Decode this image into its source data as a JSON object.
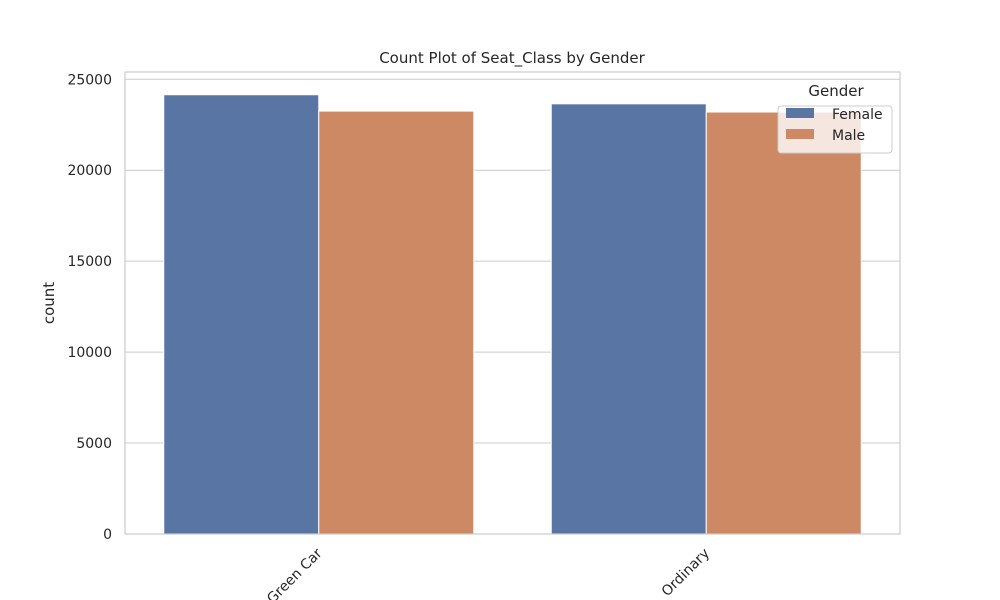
{
  "chart_data": {
    "type": "bar",
    "title": "Count Plot of Seat_Class by Gender",
    "xlabel": "",
    "ylabel": "count",
    "categories": [
      "Green Car",
      "Ordinary"
    ],
    "series": [
      {
        "name": "Female",
        "values": [
          24150,
          23650
        ],
        "color": "#5975a4"
      },
      {
        "name": "Male",
        "values": [
          23250,
          23200
        ],
        "color": "#cc8963"
      }
    ],
    "ylim": [
      0,
      25400
    ],
    "yticks": [
      0,
      5000,
      10000,
      15000,
      20000,
      25000
    ],
    "x_tick_rotation": 45,
    "legend": {
      "title": "Gender",
      "placement": "top-right"
    },
    "grid": "y"
  }
}
